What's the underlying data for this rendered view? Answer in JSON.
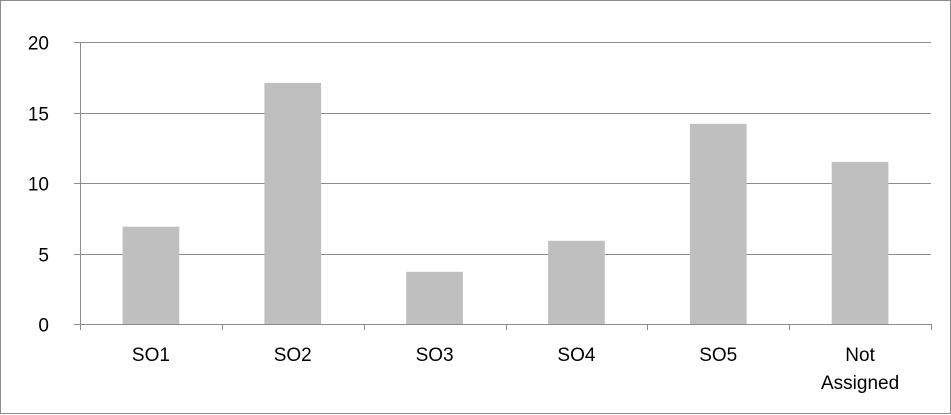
{
  "chart_data": {
    "type": "bar",
    "categories": [
      "SO1",
      "SO2",
      "SO3",
      "SO4",
      "SO5",
      "Not Assigned"
    ],
    "values": [
      6.9,
      17.1,
      3.7,
      5.9,
      14.2,
      11.5
    ],
    "title": "",
    "xlabel": "",
    "ylabel": "",
    "ylim": [
      0,
      20
    ],
    "yticks": [
      0,
      5,
      10,
      15,
      20
    ],
    "grid": true,
    "legend": "none",
    "colors": {
      "bar": "#bfbfbf",
      "grid": "#8c8c8c",
      "axis": "#8c8c8c",
      "text": "#000000"
    }
  }
}
